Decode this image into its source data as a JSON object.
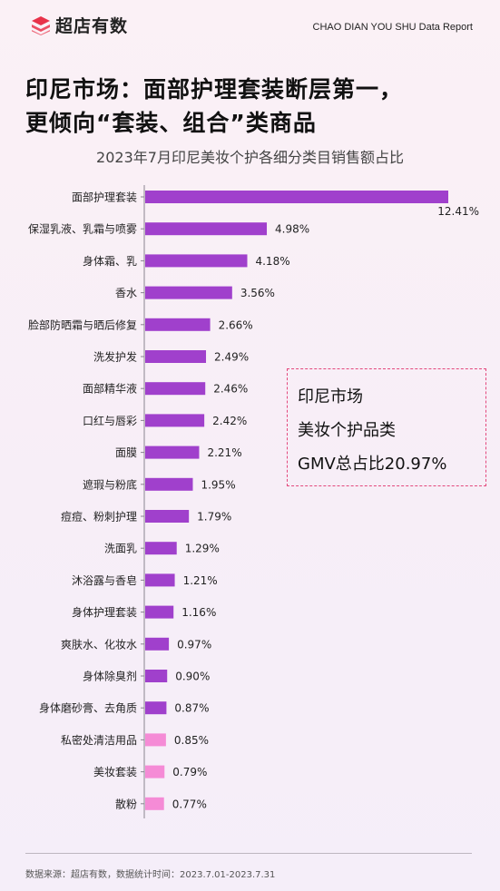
{
  "header": {
    "brand_name": "超店有数",
    "logo_icon": "layered-s-logo-icon",
    "brand_color": "#e8334a",
    "report_tag": "CHAO DIAN YOU SHU Data Report"
  },
  "title_lines": [
    "印尼市场：面部护理套装断层第一，",
    "更倾向“套装、组合”类商品"
  ],
  "infobox": {
    "lines": [
      "印尼市场",
      "美妆个护品类",
      "GMV总占比20.97%"
    ]
  },
  "footer": {
    "source": "数据来源：超店有数，数据统计时间：2023.7.01-2023.7.31"
  },
  "chart_data": {
    "type": "bar",
    "orientation": "horizontal",
    "title": "2023年7月印尼美妆个护各细分类目销售额占比",
    "xlabel": "",
    "ylabel": "",
    "unit": "%",
    "grid": false,
    "categories": [
      "面部护理套装",
      "保湿乳液、乳霜与喷雾",
      "身体霜、乳",
      "香水",
      "脸部防晒霜与晒后修复",
      "洗发护发",
      "面部精华液",
      "口红与唇彩",
      "面膜",
      "遮瑕与粉底",
      "痘痘、粉刺护理",
      "洗面乳",
      "沐浴露与香皂",
      "身体护理套装",
      "爽肤水、化妆水",
      "身体除臭剂",
      "身体磨砂膏、去角质",
      "私密处清洁用品",
      "美妆套装",
      "散粉"
    ],
    "values": [
      12.41,
      4.98,
      4.18,
      3.56,
      2.66,
      2.49,
      2.46,
      2.42,
      2.21,
      1.95,
      1.79,
      1.29,
      1.21,
      1.16,
      0.97,
      0.9,
      0.87,
      0.85,
      0.79,
      0.77
    ],
    "value_labels": [
      "12.41%",
      "4.98%",
      "4.18%",
      "3.56%",
      "2.66%",
      "2.49%",
      "2.46%",
      "2.42%",
      "2.21%",
      "1.95%",
      "1.79%",
      "1.29%",
      "1.21%",
      "1.16%",
      "0.97%",
      "0.90%",
      "0.87%",
      "0.85%",
      "0.79%",
      "0.77%"
    ],
    "colors": {
      "primary": "#a040cc",
      "secondary": "#f58bd6"
    },
    "secondary_from_index": 17
  }
}
